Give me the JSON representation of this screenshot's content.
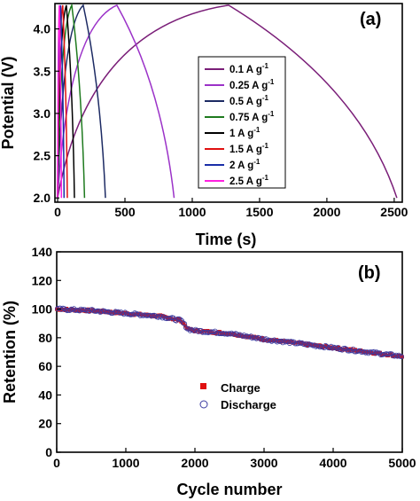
{
  "chart_data": [
    {
      "type": "line",
      "panel_label": "(a)",
      "xlabel": "Time (s)",
      "ylabel": "Potential (V)",
      "xlim": [
        -20,
        2560
      ],
      "ylim": [
        1.95,
        4.3
      ],
      "xticks": [
        0,
        500,
        1000,
        1500,
        2000,
        2500
      ],
      "yticks": [
        2.0,
        2.5,
        3.0,
        3.5,
        4.0
      ],
      "ytick_labels": [
        "2.0",
        "2.5",
        "3.0",
        "3.5",
        "4.0"
      ],
      "legend_position": "center-right",
      "series": [
        {
          "name": "0.1 A g",
          "sup": "-1",
          "color": "#7a1e78",
          "peak": [
            1270,
            4.28
          ],
          "end": [
            2520,
            2.0
          ]
        },
        {
          "name": "0.25 A g",
          "sup": "-1",
          "color": "#9b32c8",
          "peak": [
            440,
            4.28
          ],
          "end": [
            865,
            2.0
          ]
        },
        {
          "name": "0.5 A g",
          "sup": "-1",
          "color": "#1c2a63",
          "peak": [
            190,
            4.28
          ],
          "end": [
            355,
            2.0
          ]
        },
        {
          "name": "0.75 A g",
          "sup": "-1",
          "color": "#1e7a1e",
          "peak": [
            105,
            4.28
          ],
          "end": [
            200,
            2.0
          ]
        },
        {
          "name": "1 A g",
          "sup": "-1",
          "color": "#000000",
          "peak": [
            65,
            4.28
          ],
          "end": [
            125,
            2.0
          ]
        },
        {
          "name": "1.5 A g",
          "sup": "-1",
          "color": "#e01010",
          "peak": [
            38,
            4.28
          ],
          "end": [
            72,
            2.0
          ]
        },
        {
          "name": "2 A g",
          "sup": "-1",
          "color": "#1a2ea8",
          "peak": [
            22,
            4.28
          ],
          "end": [
            48,
            2.0
          ]
        },
        {
          "name": "2.5 A g",
          "sup": "-1",
          "color": "#ff20e0",
          "peak": [
            13,
            4.28
          ],
          "end": [
            28,
            2.0
          ]
        }
      ]
    },
    {
      "type": "scatter",
      "panel_label": "(b)",
      "xlabel": "Cycle number",
      "ylabel": "Retention (%)",
      "xlim": [
        0,
        5000
      ],
      "ylim": [
        0,
        140
      ],
      "xticks": [
        0,
        1000,
        2000,
        3000,
        4000,
        5000
      ],
      "yticks": [
        0,
        20,
        40,
        60,
        80,
        100,
        120,
        140
      ],
      "legend_position": "lower-center",
      "trend": {
        "x": [
          0,
          500,
          1000,
          1500,
          1800,
          1900,
          2000,
          2500,
          3000,
          3500,
          4000,
          4500,
          5000
        ],
        "y": [
          100,
          99,
          97,
          95,
          92,
          86,
          85,
          83,
          79,
          76,
          73,
          70,
          67
        ]
      },
      "series": [
        {
          "name": "Charge",
          "marker": "square",
          "color": "#e01010"
        },
        {
          "name": "Discharge",
          "marker": "circle-open",
          "color": "#3a3aa0"
        }
      ]
    }
  ]
}
